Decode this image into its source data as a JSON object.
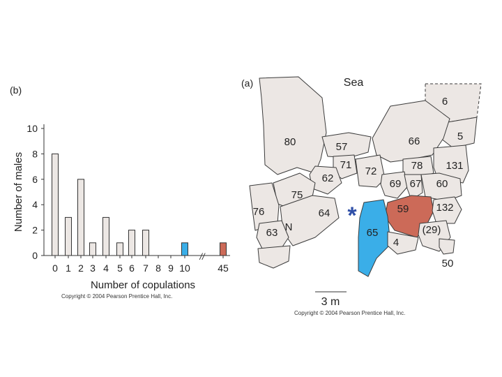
{
  "colors": {
    "bar_default": "#ece7e4",
    "bar_highlight_blue": "#3aaee8",
    "bar_highlight_red": "#cc6a58",
    "bar_stroke": "#333333",
    "territory_blue": "#3aaee8",
    "territory_red": "#cc6a58",
    "star": "#3050a8"
  },
  "chart_data": [
    {
      "type": "bar",
      "panel_label": "(b)",
      "xlabel": "Number of copulations",
      "ylabel": "Number of males",
      "categories": [
        "0",
        "1",
        "2",
        "3",
        "4",
        "5",
        "6",
        "7",
        "8",
        "9",
        "10",
        "45"
      ],
      "values": [
        8,
        3,
        6,
        1,
        3,
        1,
        2,
        2,
        0,
        0,
        1,
        1
      ],
      "highlight": {
        "10": "blue",
        "45": "red"
      },
      "ylim": [
        0,
        10
      ],
      "yticks": [
        0,
        2,
        4,
        6,
        8,
        10
      ],
      "axis_break_symbol": "//",
      "grid": false,
      "copyright": "Copyright © 2004 Pearson Prentice Hall, Inc."
    },
    {
      "type": "map",
      "panel_label": "(a)",
      "top_label": "Sea",
      "north_label": "N",
      "scale_label": "3 m",
      "star_symbol": "*",
      "copyright": "Copyright © 2004 Pearson Prentice Hall, Inc.",
      "territories": [
        "6",
        "5",
        "80",
        "57",
        "66",
        "71",
        "72",
        "78",
        "131",
        "62",
        "69",
        "67",
        "60",
        "75",
        "76",
        "64",
        "59",
        "132",
        "63",
        "65",
        "(29)",
        "4",
        "50"
      ],
      "highlighted_territories": {
        "65": "blue",
        "59": "red"
      }
    }
  ]
}
